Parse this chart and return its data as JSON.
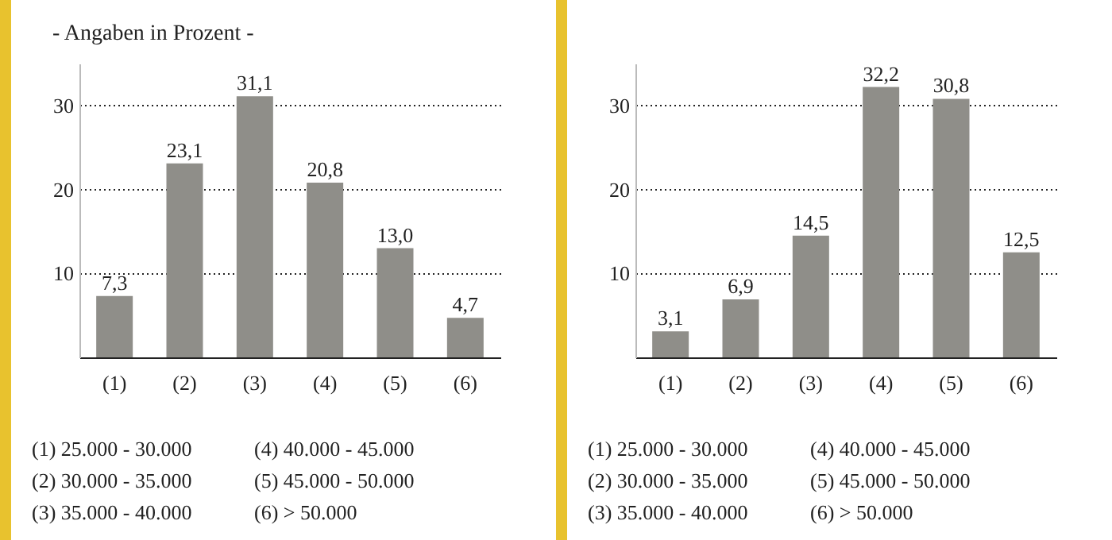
{
  "chart_data": [
    {
      "type": "bar",
      "title": "- Angaben in Prozent -",
      "categories": [
        "(1)",
        "(2)",
        "(3)",
        "(4)",
        "(5)",
        "(6)"
      ],
      "values": [
        7.3,
        23.1,
        31.1,
        20.8,
        13.0,
        4.7
      ],
      "value_labels": [
        "7,3",
        "23,1",
        "31,1",
        "20,8",
        "13,0",
        "4,7"
      ],
      "color": "#8f8e89",
      "ylim": [
        0,
        35
      ],
      "yticks": [
        10,
        20,
        30
      ],
      "grid": "y",
      "annotations": [
        "(1) 25.000 - 30.000",
        "(2) 30.000 - 35.000",
        "(3) 35.000 - 40.000",
        "(4) 40.000 - 45.000",
        "(5) 45.000 - 50.000",
        "(6) > 50.000"
      ]
    },
    {
      "type": "bar",
      "categories": [
        "(1)",
        "(2)",
        "(3)",
        "(4)",
        "(5)",
        "(6)"
      ],
      "values": [
        3.1,
        6.9,
        14.5,
        32.2,
        30.8,
        12.5
      ],
      "value_labels": [
        "3,1",
        "6,9",
        "14,5",
        "32,2",
        "30,8",
        "12,5"
      ],
      "color": "#8f8e89",
      "ylim": [
        0,
        35
      ],
      "yticks": [
        10,
        20,
        30
      ],
      "grid": "y",
      "annotations": [
        "(1) 25.000 - 30.000",
        "(2) 30.000 - 35.000",
        "(3) 35.000 - 40.000",
        "(4) 40.000 - 45.000",
        "(5) 45.000 - 50.000",
        "(6) > 50.000"
      ]
    }
  ]
}
